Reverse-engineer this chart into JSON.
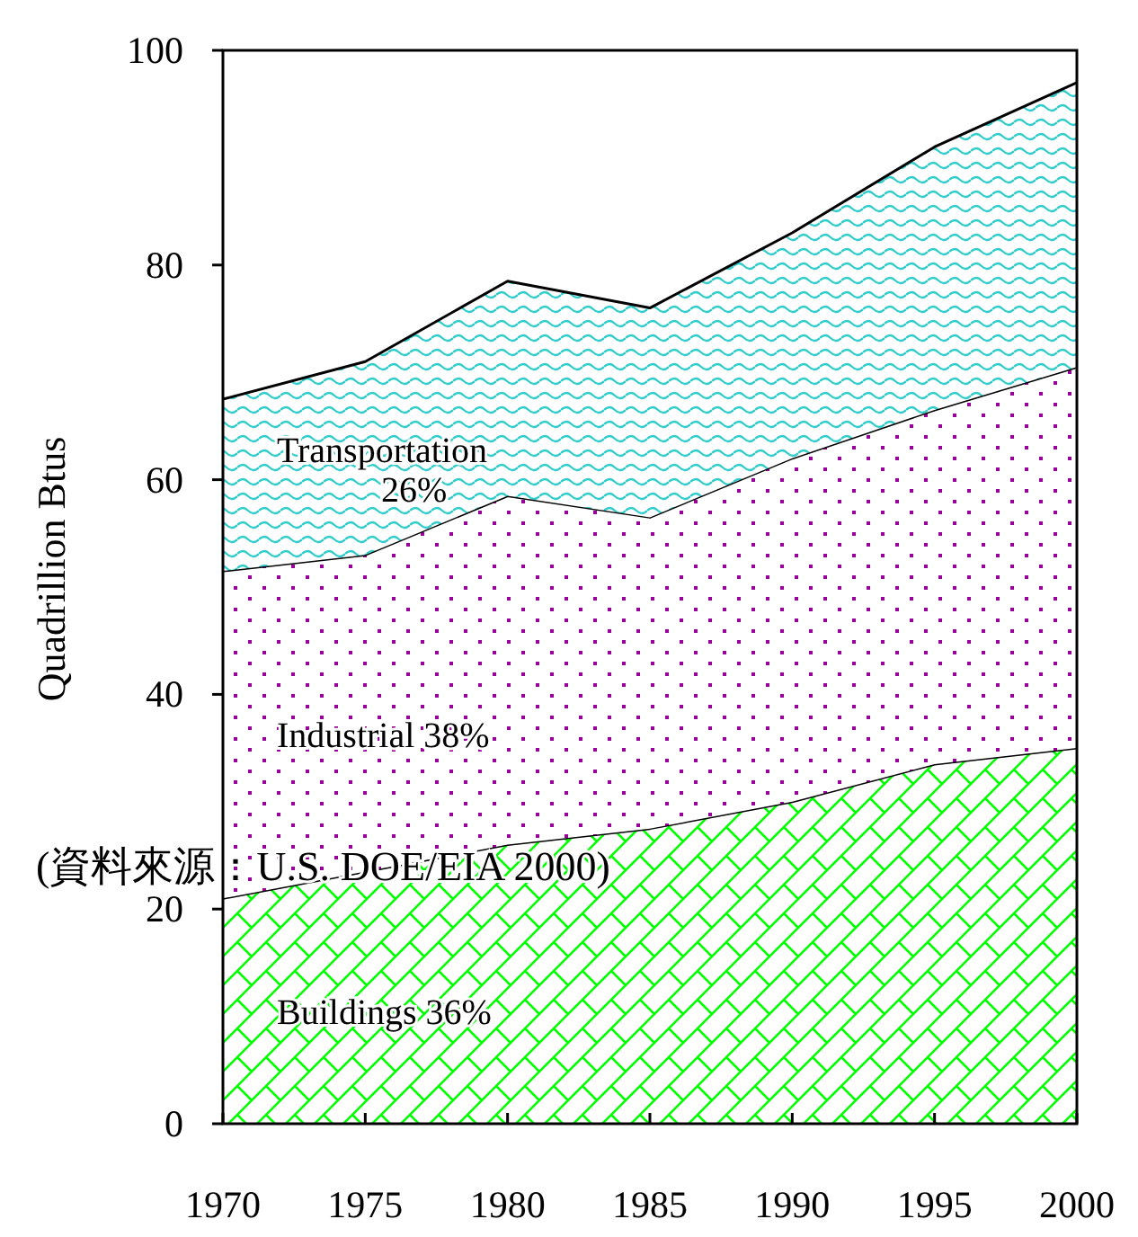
{
  "chart_data": {
    "type": "area",
    "stacked": true,
    "ylabel": "Quadrillion Btus",
    "x": [
      1970,
      1975,
      1980,
      1985,
      1990,
      1995,
      2000
    ],
    "series": [
      {
        "name": "Buildings 36%",
        "color": "#00ff00",
        "values": [
          21,
          23.5,
          26,
          27.5,
          30,
          33.5,
          35
        ]
      },
      {
        "name": "Industrial 38%",
        "color": "#990099",
        "values": [
          30.5,
          29.5,
          32.5,
          29,
          32,
          33,
          35.5
        ]
      },
      {
        "name": "Transportation 26%",
        "color": "#33cccc",
        "values": [
          16,
          18,
          20,
          19.5,
          21,
          24.5,
          26.5
        ]
      }
    ],
    "xlim": [
      1970,
      2000
    ],
    "xticks": [
      1970,
      1975,
      1980,
      1985,
      1990,
      1995,
      2000
    ],
    "ylim": [
      0,
      100
    ],
    "yticks": [
      0,
      20,
      40,
      60,
      80,
      100
    ],
    "grid": false,
    "legend": false,
    "annotations": [
      "(資料來源：U.S. DOE/EIA 2000)"
    ]
  }
}
